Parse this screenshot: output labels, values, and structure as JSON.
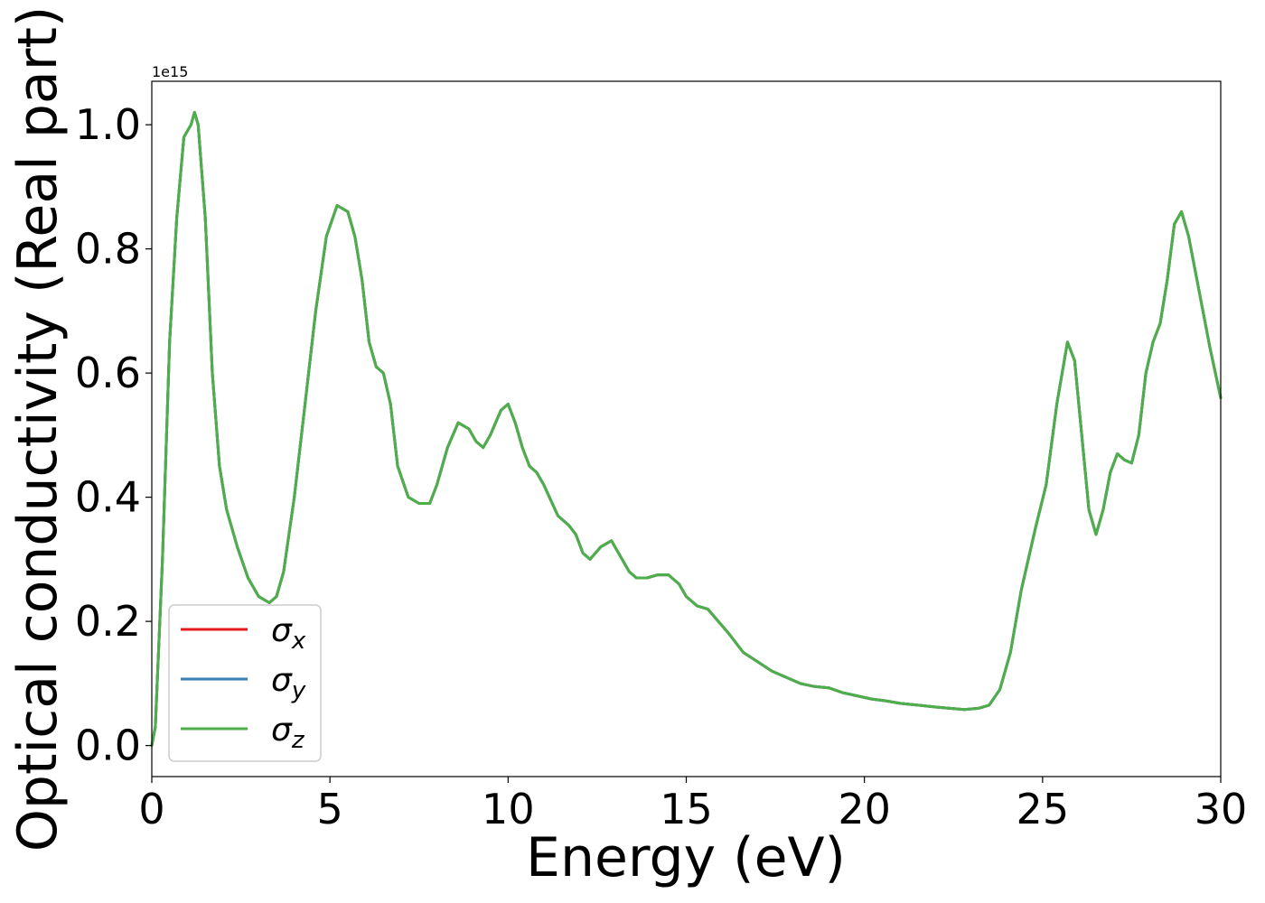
{
  "chart_data": {
    "type": "line",
    "xlabel": "Energy (eV)",
    "ylabel": "Optical conductivity (Real part)",
    "y_offset_text": "1e15",
    "y_scale": 1000000000000000.0,
    "xlim": [
      0,
      30
    ],
    "ylim": [
      -0.05,
      1.07
    ],
    "x_ticks": [
      0,
      5,
      10,
      15,
      20,
      25,
      30
    ],
    "x_tick_labels": [
      "0",
      "5",
      "10",
      "15",
      "20",
      "25",
      "30"
    ],
    "y_ticks": [
      0.0,
      0.2,
      0.4,
      0.6,
      0.8,
      1.0
    ],
    "y_tick_labels": [
      "0.0",
      "0.2",
      "0.4",
      "0.6",
      "0.8",
      "1.0"
    ],
    "grid": false,
    "legend_position": "lower-left",
    "x": [
      0,
      0.1,
      0.3,
      0.5,
      0.7,
      0.9,
      1.1,
      1.2,
      1.3,
      1.5,
      1.7,
      1.9,
      2.1,
      2.4,
      2.7,
      3.0,
      3.3,
      3.5,
      3.7,
      4.0,
      4.3,
      4.6,
      4.9,
      5.2,
      5.5,
      5.7,
      5.9,
      6.1,
      6.3,
      6.5,
      6.7,
      6.9,
      7.2,
      7.5,
      7.8,
      8.0,
      8.3,
      8.6,
      8.9,
      9.1,
      9.3,
      9.5,
      9.8,
      10.0,
      10.2,
      10.4,
      10.6,
      10.8,
      11.0,
      11.4,
      11.7,
      11.9,
      12.1,
      12.3,
      12.6,
      12.9,
      13.2,
      13.4,
      13.6,
      13.9,
      14.2,
      14.5,
      14.8,
      15.0,
      15.3,
      15.6,
      15.9,
      16.2,
      16.6,
      17.0,
      17.4,
      17.8,
      18.2,
      18.6,
      19.0,
      19.4,
      19.8,
      20.2,
      20.6,
      21.0,
      21.5,
      22.0,
      22.4,
      22.8,
      23.2,
      23.5,
      23.8,
      24.1,
      24.4,
      24.8,
      25.1,
      25.4,
      25.7,
      25.9,
      26.1,
      26.3,
      26.5,
      26.7,
      26.9,
      27.1,
      27.3,
      27.5,
      27.7,
      27.9,
      28.1,
      28.3,
      28.5,
      28.7,
      28.9,
      29.1,
      29.3,
      29.5,
      29.7,
      30.0
    ],
    "series": [
      {
        "name": "σx",
        "color": "#e41a1c",
        "values": [
          0.0,
          0.03,
          0.3,
          0.65,
          0.85,
          0.98,
          1.0,
          1.02,
          1.0,
          0.85,
          0.6,
          0.45,
          0.38,
          0.32,
          0.27,
          0.24,
          0.23,
          0.24,
          0.28,
          0.4,
          0.55,
          0.7,
          0.82,
          0.87,
          0.86,
          0.82,
          0.75,
          0.65,
          0.61,
          0.6,
          0.55,
          0.45,
          0.4,
          0.39,
          0.39,
          0.42,
          0.48,
          0.52,
          0.51,
          0.49,
          0.48,
          0.5,
          0.54,
          0.55,
          0.52,
          0.48,
          0.45,
          0.44,
          0.42,
          0.37,
          0.355,
          0.34,
          0.31,
          0.3,
          0.32,
          0.33,
          0.3,
          0.28,
          0.27,
          0.27,
          0.275,
          0.275,
          0.26,
          0.24,
          0.225,
          0.22,
          0.2,
          0.18,
          0.15,
          0.135,
          0.12,
          0.11,
          0.1,
          0.095,
          0.093,
          0.085,
          0.08,
          0.075,
          0.072,
          0.068,
          0.065,
          0.062,
          0.06,
          0.058,
          0.06,
          0.065,
          0.09,
          0.15,
          0.25,
          0.35,
          0.42,
          0.55,
          0.65,
          0.62,
          0.5,
          0.38,
          0.34,
          0.38,
          0.44,
          0.47,
          0.46,
          0.455,
          0.5,
          0.6,
          0.65,
          0.68,
          0.75,
          0.84,
          0.86,
          0.82,
          0.76,
          0.7,
          0.64,
          0.56
        ]
      },
      {
        "name": "σy",
        "color": "#377eb8",
        "values": [
          0.0,
          0.03,
          0.3,
          0.65,
          0.85,
          0.98,
          1.0,
          1.02,
          1.0,
          0.85,
          0.6,
          0.45,
          0.38,
          0.32,
          0.27,
          0.24,
          0.23,
          0.24,
          0.28,
          0.4,
          0.55,
          0.7,
          0.82,
          0.87,
          0.86,
          0.82,
          0.75,
          0.65,
          0.61,
          0.6,
          0.55,
          0.45,
          0.4,
          0.39,
          0.39,
          0.42,
          0.48,
          0.52,
          0.51,
          0.49,
          0.48,
          0.5,
          0.54,
          0.55,
          0.52,
          0.48,
          0.45,
          0.44,
          0.42,
          0.37,
          0.355,
          0.34,
          0.31,
          0.3,
          0.32,
          0.33,
          0.3,
          0.28,
          0.27,
          0.27,
          0.275,
          0.275,
          0.26,
          0.24,
          0.225,
          0.22,
          0.2,
          0.18,
          0.15,
          0.135,
          0.12,
          0.11,
          0.1,
          0.095,
          0.093,
          0.085,
          0.08,
          0.075,
          0.072,
          0.068,
          0.065,
          0.062,
          0.06,
          0.058,
          0.06,
          0.065,
          0.09,
          0.15,
          0.25,
          0.35,
          0.42,
          0.55,
          0.65,
          0.62,
          0.5,
          0.38,
          0.34,
          0.38,
          0.44,
          0.47,
          0.46,
          0.455,
          0.5,
          0.6,
          0.65,
          0.68,
          0.75,
          0.84,
          0.86,
          0.82,
          0.76,
          0.7,
          0.64,
          0.56
        ]
      },
      {
        "name": "σz",
        "color": "#4daf4a",
        "values": [
          0.0,
          0.03,
          0.3,
          0.65,
          0.85,
          0.98,
          1.0,
          1.02,
          1.0,
          0.85,
          0.6,
          0.45,
          0.38,
          0.32,
          0.27,
          0.24,
          0.23,
          0.24,
          0.28,
          0.4,
          0.55,
          0.7,
          0.82,
          0.87,
          0.86,
          0.82,
          0.75,
          0.65,
          0.61,
          0.6,
          0.55,
          0.45,
          0.4,
          0.39,
          0.39,
          0.42,
          0.48,
          0.52,
          0.51,
          0.49,
          0.48,
          0.5,
          0.54,
          0.55,
          0.52,
          0.48,
          0.45,
          0.44,
          0.42,
          0.37,
          0.355,
          0.34,
          0.31,
          0.3,
          0.32,
          0.33,
          0.3,
          0.28,
          0.27,
          0.27,
          0.275,
          0.275,
          0.26,
          0.24,
          0.225,
          0.22,
          0.2,
          0.18,
          0.15,
          0.135,
          0.12,
          0.11,
          0.1,
          0.095,
          0.093,
          0.085,
          0.08,
          0.075,
          0.072,
          0.068,
          0.065,
          0.062,
          0.06,
          0.058,
          0.06,
          0.065,
          0.09,
          0.15,
          0.25,
          0.35,
          0.42,
          0.55,
          0.65,
          0.62,
          0.5,
          0.38,
          0.34,
          0.38,
          0.44,
          0.47,
          0.46,
          0.455,
          0.5,
          0.6,
          0.65,
          0.68,
          0.75,
          0.84,
          0.86,
          0.82,
          0.76,
          0.7,
          0.64,
          0.56
        ]
      }
    ]
  }
}
